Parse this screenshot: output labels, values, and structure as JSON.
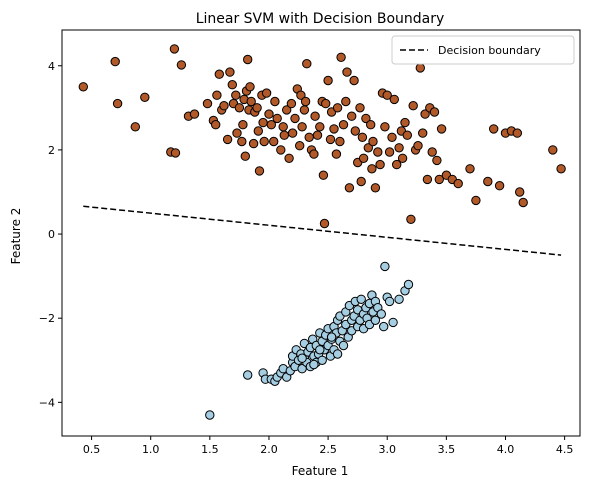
{
  "chart_data": {
    "type": "scatter",
    "title": "Linear SVM with Decision Boundary",
    "xlabel": "Feature 1",
    "ylabel": "Feature 2",
    "xlim": [
      0.25,
      4.63
    ],
    "ylim": [
      -4.8,
      4.85
    ],
    "xticks": [
      0.5,
      1.0,
      1.5,
      2.0,
      2.5,
      3.0,
      3.5,
      4.0,
      4.5
    ],
    "xtick_labels": [
      "0.5",
      "1.0",
      "1.5",
      "2.0",
      "2.5",
      "3.0",
      "3.5",
      "4.0",
      "4.5"
    ],
    "yticks": [
      -4,
      -2,
      0,
      2,
      4
    ],
    "ytick_labels": [
      "−4",
      "−2",
      "0",
      "2",
      "4"
    ],
    "grid": false,
    "legend_position": "top-right",
    "colors": {
      "class0": "#a6cee3",
      "class1": "#b15928",
      "marker_edge": "#000000",
      "boundary": "#000000"
    },
    "decision_boundary": {
      "name": "Decision boundary",
      "style": "dashed",
      "x": [
        0.43,
        4.47
      ],
      "y": [
        0.66,
        -0.5
      ]
    },
    "series": [
      {
        "class": 0,
        "points": [
          [
            1.5,
            -4.3
          ],
          [
            1.82,
            -3.35
          ],
          [
            1.95,
            -3.3
          ],
          [
            1.97,
            -3.45
          ],
          [
            2.02,
            -3.45
          ],
          [
            2.05,
            -3.5
          ],
          [
            2.07,
            -3.4
          ],
          [
            2.1,
            -3.3
          ],
          [
            2.12,
            -3.2
          ],
          [
            2.15,
            -3.4
          ],
          [
            2.18,
            -3.25
          ],
          [
            2.2,
            -3.05
          ],
          [
            2.2,
            -2.9
          ],
          [
            2.22,
            -3.15
          ],
          [
            2.23,
            -2.75
          ],
          [
            2.25,
            -3.0
          ],
          [
            2.27,
            -2.85
          ],
          [
            2.28,
            -3.2
          ],
          [
            2.3,
            -2.95
          ],
          [
            2.3,
            -2.6
          ],
          [
            2.32,
            -3.05
          ],
          [
            2.33,
            -2.8
          ],
          [
            2.35,
            -2.7
          ],
          [
            2.35,
            -3.15
          ],
          [
            2.37,
            -2.5
          ],
          [
            2.38,
            -2.9
          ],
          [
            2.4,
            -3.05
          ],
          [
            2.4,
            -2.65
          ],
          [
            2.42,
            -2.85
          ],
          [
            2.43,
            -2.35
          ],
          [
            2.45,
            -2.55
          ],
          [
            2.45,
            -3.0
          ],
          [
            2.47,
            -2.75
          ],
          [
            2.48,
            -2.4
          ],
          [
            2.5,
            -2.25
          ],
          [
            2.5,
            -2.65
          ],
          [
            2.52,
            -2.9
          ],
          [
            2.53,
            -2.5
          ],
          [
            2.55,
            -2.2
          ],
          [
            2.55,
            -2.75
          ],
          [
            2.57,
            -2.35
          ],
          [
            2.58,
            -2.05
          ],
          [
            2.6,
            -2.55
          ],
          [
            2.6,
            -1.95
          ],
          [
            2.62,
            -2.3
          ],
          [
            2.63,
            -2.65
          ],
          [
            2.65,
            -2.15
          ],
          [
            2.65,
            -1.85
          ],
          [
            2.67,
            -2.45
          ],
          [
            2.68,
            -1.7
          ],
          [
            2.7,
            -2.05
          ],
          [
            2.7,
            -2.3
          ],
          [
            2.72,
            -1.95
          ],
          [
            2.73,
            -1.6
          ],
          [
            2.75,
            -2.2
          ],
          [
            2.75,
            -1.8
          ],
          [
            2.77,
            -2.05
          ],
          [
            2.78,
            -1.55
          ],
          [
            2.8,
            -1.9
          ],
          [
            2.8,
            -2.25
          ],
          [
            2.82,
            -1.75
          ],
          [
            2.83,
            -2.0
          ],
          [
            2.85,
            -1.65
          ],
          [
            2.85,
            -2.15
          ],
          [
            2.87,
            -1.45
          ],
          [
            2.88,
            -1.85
          ],
          [
            2.9,
            -2.05
          ],
          [
            2.9,
            -1.6
          ],
          [
            2.92,
            -1.75
          ],
          [
            2.95,
            -1.9
          ],
          [
            2.97,
            -2.2
          ],
          [
            2.98,
            -0.77
          ],
          [
            3.0,
            -1.5
          ],
          [
            3.02,
            -1.6
          ],
          [
            3.05,
            -2.1
          ],
          [
            3.1,
            -1.55
          ],
          [
            3.15,
            -1.35
          ],
          [
            3.18,
            -1.2
          ],
          [
            2.58,
            -2.85
          ],
          [
            2.38,
            -3.1
          ],
          [
            2.28,
            -2.95
          ],
          [
            2.43,
            -2.75
          ],
          [
            2.53,
            -2.45
          ]
        ]
      },
      {
        "class": 1,
        "points": [
          [
            0.43,
            3.5
          ],
          [
            0.7,
            4.1
          ],
          [
            0.72,
            3.1
          ],
          [
            0.87,
            2.55
          ],
          [
            0.95,
            3.25
          ],
          [
            1.17,
            1.95
          ],
          [
            1.2,
            4.4
          ],
          [
            1.21,
            1.93
          ],
          [
            1.26,
            4.02
          ],
          [
            1.32,
            2.8
          ],
          [
            1.37,
            2.85
          ],
          [
            1.48,
            3.1
          ],
          [
            1.53,
            2.7
          ],
          [
            1.55,
            2.6
          ],
          [
            1.56,
            3.3
          ],
          [
            1.58,
            3.8
          ],
          [
            1.6,
            2.95
          ],
          [
            1.62,
            3.05
          ],
          [
            1.65,
            2.25
          ],
          [
            1.67,
            3.85
          ],
          [
            1.69,
            3.55
          ],
          [
            1.7,
            3.1
          ],
          [
            1.72,
            3.3
          ],
          [
            1.73,
            2.4
          ],
          [
            1.75,
            3.0
          ],
          [
            1.77,
            2.2
          ],
          [
            1.78,
            2.6
          ],
          [
            1.79,
            3.2
          ],
          [
            1.8,
            1.85
          ],
          [
            1.81,
            3.4
          ],
          [
            1.82,
            4.15
          ],
          [
            1.83,
            2.95
          ],
          [
            1.84,
            3.5
          ],
          [
            1.85,
            3.15
          ],
          [
            1.87,
            2.15
          ],
          [
            1.88,
            2.9
          ],
          [
            1.9,
            3.0
          ],
          [
            1.91,
            2.45
          ],
          [
            1.92,
            1.5
          ],
          [
            1.94,
            3.3
          ],
          [
            1.95,
            2.65
          ],
          [
            1.96,
            2.2
          ],
          [
            1.98,
            3.35
          ],
          [
            2.0,
            2.85
          ],
          [
            2.02,
            2.6
          ],
          [
            2.04,
            2.2
          ],
          [
            2.05,
            3.15
          ],
          [
            2.07,
            2.75
          ],
          [
            2.1,
            2.0
          ],
          [
            2.12,
            2.55
          ],
          [
            2.13,
            2.35
          ],
          [
            2.15,
            2.95
          ],
          [
            2.17,
            1.8
          ],
          [
            2.19,
            3.1
          ],
          [
            2.2,
            2.4
          ],
          [
            2.22,
            2.75
          ],
          [
            2.24,
            3.45
          ],
          [
            2.26,
            2.1
          ],
          [
            2.27,
            3.3
          ],
          [
            2.28,
            2.55
          ],
          [
            2.3,
            2.95
          ],
          [
            2.31,
            3.15
          ],
          [
            2.32,
            4.05
          ],
          [
            2.34,
            2.3
          ],
          [
            2.36,
            2.0
          ],
          [
            2.38,
            1.9
          ],
          [
            2.39,
            2.8
          ],
          [
            2.41,
            2.35
          ],
          [
            2.43,
            2.55
          ],
          [
            2.45,
            3.15
          ],
          [
            2.46,
            1.4
          ],
          [
            2.47,
            0.25
          ],
          [
            2.48,
            3.1
          ],
          [
            2.5,
            3.65
          ],
          [
            2.52,
            2.25
          ],
          [
            2.53,
            2.9
          ],
          [
            2.55,
            2.5
          ],
          [
            2.57,
            1.9
          ],
          [
            2.58,
            3.0
          ],
          [
            2.6,
            2.2
          ],
          [
            2.61,
            4.2
          ],
          [
            2.63,
            2.6
          ],
          [
            2.65,
            3.15
          ],
          [
            2.66,
            3.85
          ],
          [
            2.68,
            1.1
          ],
          [
            2.7,
            2.8
          ],
          [
            2.72,
            3.65
          ],
          [
            2.73,
            2.45
          ],
          [
            2.75,
            1.7
          ],
          [
            2.77,
            3.0
          ],
          [
            2.78,
            1.25
          ],
          [
            2.79,
            2.3
          ],
          [
            2.8,
            1.8
          ],
          [
            2.82,
            2.75
          ],
          [
            2.84,
            2.05
          ],
          [
            2.86,
            2.6
          ],
          [
            2.87,
            1.55
          ],
          [
            2.88,
            2.2
          ],
          [
            2.9,
            1.1
          ],
          [
            2.92,
            1.95
          ],
          [
            2.94,
            1.65
          ],
          [
            2.96,
            3.35
          ],
          [
            2.98,
            2.55
          ],
          [
            3.0,
            3.3
          ],
          [
            3.02,
            1.95
          ],
          [
            3.04,
            2.3
          ],
          [
            3.06,
            3.2
          ],
          [
            3.08,
            1.65
          ],
          [
            3.1,
            2.05
          ],
          [
            3.12,
            2.45
          ],
          [
            3.13,
            1.8
          ],
          [
            3.15,
            2.65
          ],
          [
            3.17,
            2.35
          ],
          [
            3.2,
            0.35
          ],
          [
            3.22,
            3.05
          ],
          [
            3.24,
            2.0
          ],
          [
            3.26,
            2.1
          ],
          [
            3.28,
            3.95
          ],
          [
            3.3,
            2.4
          ],
          [
            3.32,
            2.85
          ],
          [
            3.34,
            1.3
          ],
          [
            3.36,
            3.0
          ],
          [
            3.38,
            1.95
          ],
          [
            3.4,
            2.9
          ],
          [
            3.42,
            1.75
          ],
          [
            3.44,
            1.3
          ],
          [
            3.46,
            2.5
          ],
          [
            3.5,
            1.4
          ],
          [
            3.55,
            1.3
          ],
          [
            3.6,
            1.2
          ],
          [
            3.7,
            1.55
          ],
          [
            3.75,
            0.8
          ],
          [
            3.85,
            1.25
          ],
          [
            3.9,
            2.5
          ],
          [
            3.95,
            1.15
          ],
          [
            4.0,
            2.4
          ],
          [
            4.05,
            2.45
          ],
          [
            4.1,
            2.4
          ],
          [
            4.12,
            1.0
          ],
          [
            4.15,
            0.75
          ],
          [
            4.4,
            2.0
          ],
          [
            4.47,
            1.55
          ]
        ]
      }
    ]
  }
}
